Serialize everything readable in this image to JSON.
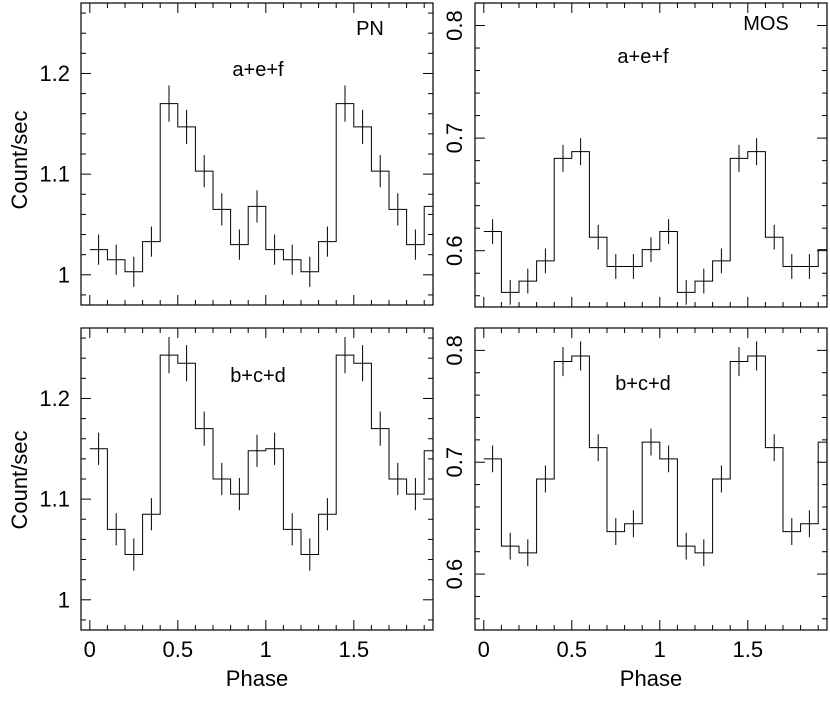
{
  "chart_data": [
    {
      "type": "line",
      "panel": "top-left",
      "label": "PN",
      "subtitle": "a+e+f",
      "xlabel": "",
      "ylabel": "Count/sec",
      "xlim": [
        -0.05,
        1.95
      ],
      "ylim": [
        0.97,
        1.27
      ],
      "xticks": [],
      "yticks": [
        "1",
        "1.1",
        "1.2"
      ],
      "ytick_values": [
        1,
        1.1,
        1.2
      ],
      "bin_edges": [
        0,
        0.1,
        0.2,
        0.3,
        0.4,
        0.5,
        0.6,
        0.7,
        0.8,
        0.9,
        1.0,
        1.1,
        1.2,
        1.3,
        1.4,
        1.5,
        1.6,
        1.7,
        1.8,
        1.9,
        2.0
      ],
      "values": [
        1.025,
        1.015,
        1.003,
        1.033,
        1.17,
        1.147,
        1.103,
        1.065,
        1.03,
        1.068,
        1.025,
        1.015,
        1.003,
        1.033,
        1.17,
        1.147,
        1.103,
        1.065,
        1.03,
        1.068
      ],
      "errors": [
        0.015,
        0.015,
        0.015,
        0.015,
        0.018,
        0.017,
        0.016,
        0.016,
        0.015,
        0.016,
        0.015,
        0.015,
        0.015,
        0.015,
        0.018,
        0.017,
        0.016,
        0.016,
        0.015,
        0.016
      ]
    },
    {
      "type": "line",
      "panel": "top-right",
      "label": "MOS",
      "subtitle": "a+e+f",
      "xlabel": "",
      "ylabel": "",
      "xlim": [
        -0.05,
        1.95
      ],
      "ylim": [
        0.55,
        0.82
      ],
      "xticks": [],
      "yticks": [
        "0.6",
        "0.7",
        "0.8"
      ],
      "ytick_values": [
        0.6,
        0.7,
        0.8
      ],
      "bin_edges": [
        0,
        0.1,
        0.2,
        0.3,
        0.4,
        0.5,
        0.6,
        0.7,
        0.8,
        0.9,
        1.0,
        1.1,
        1.2,
        1.3,
        1.4,
        1.5,
        1.6,
        1.7,
        1.8,
        1.9,
        2.0
      ],
      "values": [
        0.617,
        0.563,
        0.573,
        0.591,
        0.682,
        0.688,
        0.612,
        0.586,
        0.586,
        0.601,
        0.617,
        0.563,
        0.573,
        0.591,
        0.682,
        0.688,
        0.612,
        0.586,
        0.586,
        0.601
      ],
      "errors": [
        0.011,
        0.011,
        0.011,
        0.011,
        0.012,
        0.012,
        0.011,
        0.011,
        0.011,
        0.011,
        0.011,
        0.011,
        0.011,
        0.011,
        0.012,
        0.012,
        0.011,
        0.011,
        0.011,
        0.011
      ]
    },
    {
      "type": "line",
      "panel": "bottom-left",
      "label": "",
      "subtitle": "b+c+d",
      "xlabel": "Phase",
      "ylabel": "Count/sec",
      "xlim": [
        -0.05,
        1.95
      ],
      "ylim": [
        0.97,
        1.27
      ],
      "xticks": [
        "0",
        "0.5",
        "1",
        "1.5"
      ],
      "xtick_values": [
        0,
        0.5,
        1,
        1.5
      ],
      "yticks": [
        "1",
        "1.1",
        "1.2"
      ],
      "ytick_values": [
        1,
        1.1,
        1.2
      ],
      "bin_edges": [
        0,
        0.1,
        0.2,
        0.3,
        0.4,
        0.5,
        0.6,
        0.7,
        0.8,
        0.9,
        1.0,
        1.1,
        1.2,
        1.3,
        1.4,
        1.5,
        1.6,
        1.7,
        1.8,
        1.9,
        2.0
      ],
      "values": [
        1.15,
        1.07,
        1.045,
        1.085,
        1.243,
        1.235,
        1.17,
        1.12,
        1.105,
        1.148,
        1.15,
        1.07,
        1.045,
        1.085,
        1.243,
        1.235,
        1.17,
        1.12,
        1.105,
        1.148
      ],
      "errors": [
        0.016,
        0.016,
        0.016,
        0.016,
        0.018,
        0.018,
        0.017,
        0.016,
        0.016,
        0.016,
        0.016,
        0.016,
        0.016,
        0.016,
        0.018,
        0.018,
        0.017,
        0.016,
        0.016,
        0.016
      ]
    },
    {
      "type": "line",
      "panel": "bottom-right",
      "label": "",
      "subtitle": "b+c+d",
      "xlabel": "Phase",
      "ylabel": "",
      "xlim": [
        -0.05,
        1.95
      ],
      "ylim": [
        0.55,
        0.82
      ],
      "xticks": [
        "0",
        "0.5",
        "1",
        "1.5"
      ],
      "xtick_values": [
        0,
        0.5,
        1,
        1.5
      ],
      "yticks": [
        "0.6",
        "0.7",
        "0.8"
      ],
      "ytick_values": [
        0.6,
        0.7,
        0.8
      ],
      "bin_edges": [
        0,
        0.1,
        0.2,
        0.3,
        0.4,
        0.5,
        0.6,
        0.7,
        0.8,
        0.9,
        1.0,
        1.1,
        1.2,
        1.3,
        1.4,
        1.5,
        1.6,
        1.7,
        1.8,
        1.9,
        2.0
      ],
      "values": [
        0.703,
        0.625,
        0.619,
        0.685,
        0.79,
        0.795,
        0.713,
        0.638,
        0.645,
        0.718,
        0.703,
        0.625,
        0.619,
        0.685,
        0.79,
        0.795,
        0.713,
        0.638,
        0.645,
        0.718
      ],
      "errors": [
        0.012,
        0.012,
        0.012,
        0.012,
        0.013,
        0.013,
        0.012,
        0.012,
        0.012,
        0.012,
        0.012,
        0.012,
        0.012,
        0.012,
        0.013,
        0.013,
        0.012,
        0.012,
        0.012,
        0.012
      ]
    }
  ]
}
